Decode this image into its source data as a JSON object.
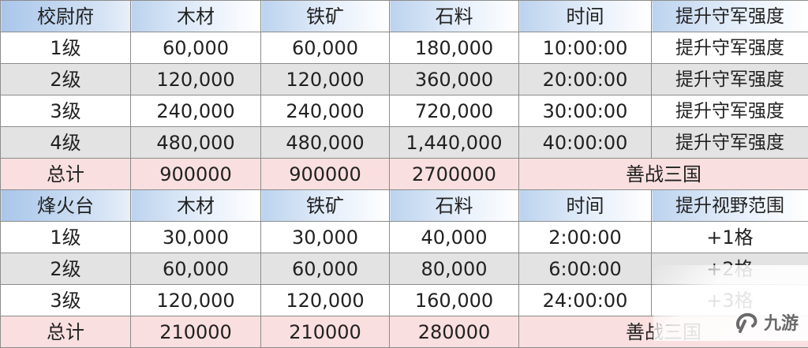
{
  "colors": {
    "header_blue": "#bcd3ee",
    "row_gray": "#e3e3e3",
    "total_pink": "#f9dfdf",
    "border": "#8c8c8c"
  },
  "section1": {
    "header": [
      "校尉府",
      "木材",
      "铁矿",
      "石料",
      "时间",
      "提升守军强度"
    ],
    "rows": [
      [
        "1级",
        "60,000",
        "60,000",
        "180,000",
        "10:00:00",
        "提升守军强度"
      ],
      [
        "2级",
        "120,000",
        "120,000",
        "360,000",
        "20:00:00",
        "提升守军强度"
      ],
      [
        "3级",
        "240,000",
        "240,000",
        "720,000",
        "30:00:00",
        "提升守军强度"
      ],
      [
        "4级",
        "480,000",
        "480,000",
        "1,440,000",
        "40:00:00",
        "提升守军强度"
      ]
    ],
    "total": [
      "总计",
      "900000",
      "900000",
      "2700000",
      "善战三国"
    ]
  },
  "section2": {
    "header": [
      "烽火台",
      "木材",
      "铁矿",
      "石料",
      "时间",
      "提升视野范围"
    ],
    "rows": [
      [
        "1级",
        "30,000",
        "30,000",
        "40,000",
        "2:00:00",
        "+1格"
      ],
      [
        "2级",
        "60,000",
        "60,000",
        "80,000",
        "6:00:00",
        "+2格"
      ],
      [
        "3级",
        "120,000",
        "120,000",
        "160,000",
        "24:00:00",
        "+3格"
      ]
    ],
    "total": [
      "总计",
      "210000",
      "210000",
      "280000",
      "善战三国"
    ]
  },
  "watermark": {
    "text": "九游",
    "icon": "jiuyou-logo-icon"
  }
}
